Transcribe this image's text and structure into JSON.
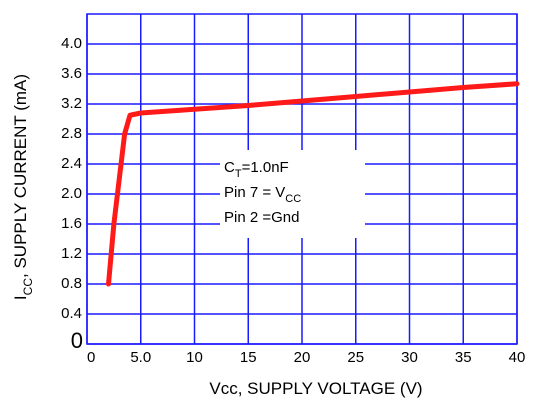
{
  "chart_data": {
    "type": "line",
    "x_label": [
      {
        "text": "Vcc, SUPPLY VOLTAGE (V)"
      }
    ],
    "y_label": [
      {
        "text": "I"
      },
      {
        "text": "CC",
        "sub": true
      },
      {
        "text": ", SUPPLY CURRENT (mA)"
      }
    ],
    "annotation": [
      [
        {
          "text": "C"
        },
        {
          "text": "T",
          "sub": true
        },
        {
          "text": "=1.0nF"
        }
      ],
      [
        {
          "text": "Pin 7 = V"
        },
        {
          "text": "CC",
          "sub": true
        }
      ],
      [
        {
          "text": "Pin 2 =Gnd"
        }
      ]
    ],
    "series": [
      {
        "color": "#ff1a1a",
        "x": [
          2,
          2.5,
          3,
          3.5,
          4,
          5,
          7,
          10,
          15,
          20,
          25,
          30,
          35,
          40
        ],
        "values": [
          0.8,
          1.6,
          2.2,
          2.8,
          3.05,
          3.08,
          3.1,
          3.13,
          3.18,
          3.24,
          3.3,
          3.36,
          3.42,
          3.47
        ]
      }
    ],
    "xlim": [
      0,
      40
    ],
    "xticks": [
      0,
      {
        "value": 5,
        "label": "5.0"
      },
      10,
      15,
      20,
      25,
      30,
      35,
      40
    ],
    "ylim": [
      0,
      4.4
    ],
    "yticks": [
      0,
      0.4,
      0.8,
      1.2,
      1.6,
      {
        "value": 2,
        "label": "2.0"
      },
      2.4,
      2.8,
      3.2,
      3.6,
      {
        "value": 4,
        "label": "4.0"
      }
    ],
    "grid": true,
    "grid_color": "#1a1aff"
  }
}
